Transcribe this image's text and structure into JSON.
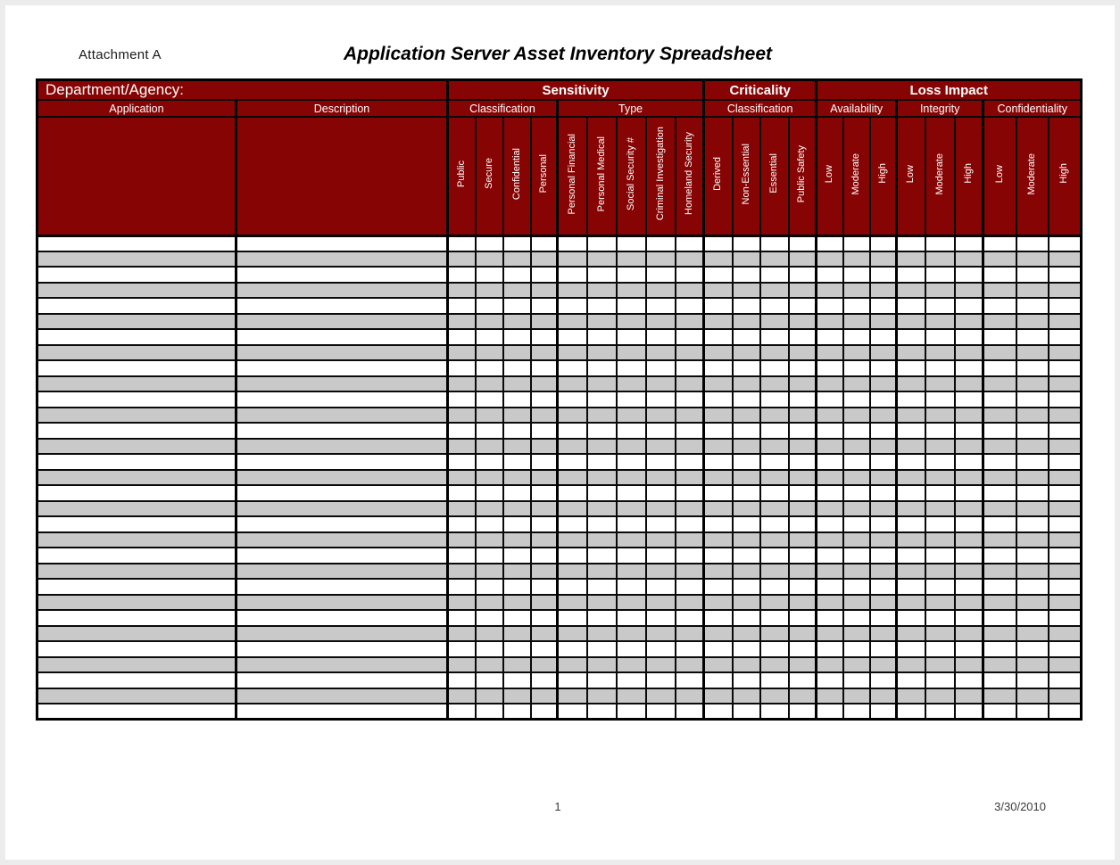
{
  "page": {
    "attachment_label": "Attachment A",
    "title": "Application Server Asset Inventory Spreadsheet",
    "footer": {
      "page_number": "1",
      "date": "3/30/2010"
    }
  },
  "colors": {
    "header_red": "#870404",
    "row_alt_gray": "#C9C9C9",
    "grid_black": "#000000",
    "header_text": "#FFFFFF"
  },
  "table": {
    "department_agency_label": "Department/Agency:",
    "groups": [
      {
        "label": "Sensitivity"
      },
      {
        "label": "Criticality"
      },
      {
        "label": "Loss Impact"
      }
    ],
    "columns": {
      "application": "Application",
      "description": "Description",
      "sensitivity_classification": {
        "label": "Classification",
        "items": [
          "Public",
          "Secure",
          "Confidential",
          "Personal"
        ]
      },
      "sensitivity_type": {
        "label": "Type",
        "items": [
          "Personal Financial",
          "Personal Medical",
          "Social Security #",
          "Criminal Investigation",
          "Homeland Security"
        ]
      },
      "criticality_classification": {
        "label": "Classification",
        "items": [
          "Derived",
          "Non-Essential",
          "Essential",
          "Public Safety"
        ]
      },
      "availability": {
        "label": "Availability",
        "items": [
          "Low",
          "Moderate",
          "High"
        ]
      },
      "integrity": {
        "label": "Integrity",
        "items": [
          "Low",
          "Moderate",
          "High"
        ]
      },
      "confidentiality": {
        "label": "Confidentiality",
        "items": [
          "Low",
          "Moderate",
          "High"
        ]
      }
    },
    "body": {
      "row_count": 31,
      "default_cell_value": ""
    }
  }
}
